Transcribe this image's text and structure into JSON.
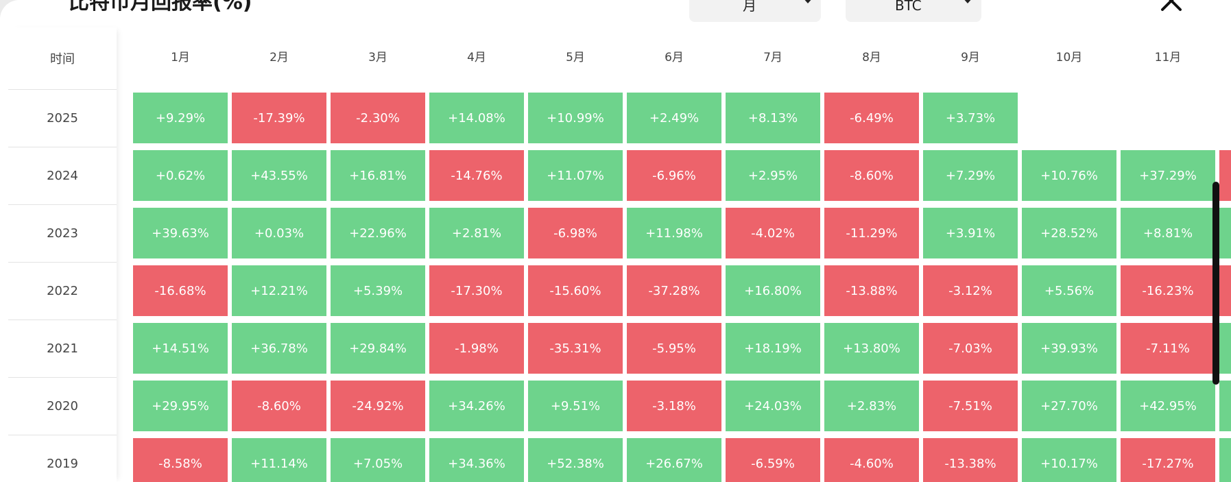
{
  "title": "比特币月回报率(%)",
  "filters": {
    "period": "月",
    "asset": "BTC"
  },
  "table": {
    "time_header": "时间",
    "months": [
      "1月",
      "2月",
      "3月",
      "4月",
      "5月",
      "6月",
      "7月",
      "8月",
      "9月",
      "10月",
      "11月"
    ],
    "rows": [
      {
        "year": "2025",
        "values": [
          "+9.29%",
          "-17.39%",
          "-2.30%",
          "+14.08%",
          "+10.99%",
          "+2.49%",
          "+8.13%",
          "-6.49%",
          "+3.73%",
          null,
          null
        ],
        "clipped": null
      },
      {
        "year": "2024",
        "values": [
          "+0.62%",
          "+43.55%",
          "+16.81%",
          "-14.76%",
          "+11.07%",
          "-6.96%",
          "+2.95%",
          "-8.60%",
          "+7.29%",
          "+10.76%",
          "+37.29%"
        ],
        "clipped": "neg"
      },
      {
        "year": "2023",
        "values": [
          "+39.63%",
          "+0.03%",
          "+22.96%",
          "+2.81%",
          "-6.98%",
          "+11.98%",
          "-4.02%",
          "-11.29%",
          "+3.91%",
          "+28.52%",
          "+8.81%"
        ],
        "clipped": "pos"
      },
      {
        "year": "2022",
        "values": [
          "-16.68%",
          "+12.21%",
          "+5.39%",
          "-17.30%",
          "-15.60%",
          "-37.28%",
          "+16.80%",
          "-13.88%",
          "-3.12%",
          "+5.56%",
          "-16.23%"
        ],
        "clipped": "neg"
      },
      {
        "year": "2021",
        "values": [
          "+14.51%",
          "+36.78%",
          "+29.84%",
          "-1.98%",
          "-35.31%",
          "-5.95%",
          "+18.19%",
          "+13.80%",
          "-7.03%",
          "+39.93%",
          "-7.11%"
        ],
        "clipped": "pos"
      },
      {
        "year": "2020",
        "values": [
          "+29.95%",
          "-8.60%",
          "-24.92%",
          "+34.26%",
          "+9.51%",
          "-3.18%",
          "+24.03%",
          "+2.83%",
          "-7.51%",
          "+27.70%",
          "+42.95%"
        ],
        "clipped": "pos"
      },
      {
        "year": "2019",
        "values": [
          "-8.58%",
          "+11.14%",
          "+7.05%",
          "+34.36%",
          "+52.38%",
          "+26.67%",
          "-6.59%",
          "-4.60%",
          "-13.38%",
          "+10.17%",
          "-17.27%"
        ],
        "clipped": "pos"
      }
    ]
  },
  "colors": {
    "positive": "#6ed38c",
    "negative": "#ed636b"
  },
  "icons": {
    "close": "close-icon",
    "caret": "caret-down-icon"
  }
}
